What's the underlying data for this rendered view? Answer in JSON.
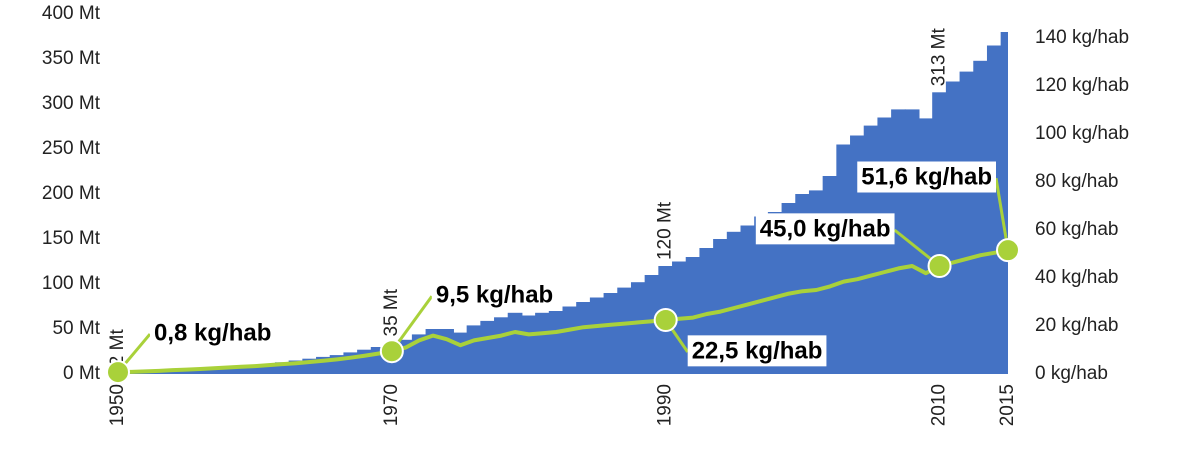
{
  "chart_data": {
    "type": "area-line",
    "x": [
      1950,
      1951,
      1952,
      1953,
      1954,
      1955,
      1956,
      1957,
      1958,
      1959,
      1960,
      1961,
      1962,
      1963,
      1964,
      1965,
      1966,
      1967,
      1968,
      1969,
      1970,
      1971,
      1972,
      1973,
      1974,
      1975,
      1976,
      1977,
      1978,
      1979,
      1980,
      1981,
      1982,
      1983,
      1984,
      1985,
      1986,
      1987,
      1988,
      1989,
      1990,
      1991,
      1992,
      1993,
      1994,
      1995,
      1996,
      1997,
      1998,
      1999,
      2000,
      2001,
      2002,
      2003,
      2004,
      2005,
      2006,
      2007,
      2008,
      2009,
      2010,
      2011,
      2012,
      2013,
      2014,
      2015
    ],
    "xlim": [
      1950,
      2015
    ],
    "xticks": [
      1950,
      1970,
      1990,
      2010,
      2015
    ],
    "ylim": [
      0,
      400
    ],
    "yticks": [
      {
        "value": 0,
        "label": "0 Mt"
      },
      {
        "value": 50,
        "label": "50 Mt"
      },
      {
        "value": 100,
        "label": "100 Mt"
      },
      {
        "value": 150,
        "label": "150 Mt"
      },
      {
        "value": 200,
        "label": "200 Mt"
      },
      {
        "value": 250,
        "label": "250 Mt"
      },
      {
        "value": 300,
        "label": "300 Mt"
      },
      {
        "value": 350,
        "label": "350 Mt"
      },
      {
        "value": 400,
        "label": "400 Mt"
      }
    ],
    "y2lim": [
      0,
      150
    ],
    "y2ticks": [
      {
        "value": 0,
        "label": "0 kg/hab"
      },
      {
        "value": 20,
        "label": "20 kg/hab"
      },
      {
        "value": 40,
        "label": "40 kg/hab"
      },
      {
        "value": 60,
        "label": "60 kg/hab"
      },
      {
        "value": 80,
        "label": "80 kg/hab"
      },
      {
        "value": 100,
        "label": "100 kg/hab"
      },
      {
        "value": 120,
        "label": "120 kg/hab"
      },
      {
        "value": 140,
        "label": "140 kg/hab"
      }
    ],
    "series": [
      {
        "type": "area",
        "color": "#4472c4",
        "values": [
          2,
          2,
          3,
          4,
          5,
          5,
          6,
          7,
          8,
          9,
          10,
          11,
          13,
          15,
          17,
          19,
          21,
          24,
          27,
          30,
          35,
          38,
          44,
          50,
          50,
          46,
          54,
          59,
          63,
          68,
          65,
          68,
          70,
          75,
          80,
          85,
          90,
          96,
          102,
          110,
          120,
          125,
          130,
          140,
          150,
          158,
          165,
          175,
          180,
          190,
          200,
          204,
          220,
          255,
          265,
          276,
          285,
          294,
          294,
          284,
          313,
          325,
          336,
          348,
          365,
          380
        ],
        "value_labels": [
          "2 Mt",
          null,
          null,
          null,
          null,
          null,
          null,
          null,
          null,
          null,
          null,
          null,
          null,
          null,
          null,
          null,
          null,
          null,
          null,
          null,
          "35 Mt",
          null,
          null,
          null,
          null,
          null,
          null,
          null,
          null,
          null,
          null,
          null,
          null,
          null,
          null,
          null,
          null,
          null,
          null,
          null,
          "120 Mt",
          null,
          null,
          null,
          null,
          null,
          null,
          null,
          null,
          null,
          null,
          null,
          null,
          null,
          null,
          null,
          null,
          null,
          null,
          null,
          "313 Mt",
          null,
          null,
          null,
          null,
          null
        ]
      },
      {
        "type": "line",
        "axis": "y2",
        "color": "#a9d13a",
        "values": [
          0.8,
          0.9,
          1.1,
          1.3,
          1.6,
          1.8,
          2.1,
          2.4,
          2.7,
          3.0,
          3.3,
          3.7,
          4.1,
          4.5,
          5.0,
          5.5,
          6.1,
          6.8,
          7.6,
          8.5,
          9.5,
          11,
          14,
          16,
          14.5,
          12,
          14,
          15,
          16,
          17.5,
          16.5,
          17,
          17.5,
          18.5,
          19.5,
          20,
          20.5,
          21,
          21.5,
          22,
          22.5,
          23,
          23.5,
          25,
          26,
          27.5,
          29,
          30.5,
          32,
          33.5,
          34.5,
          35,
          36.5,
          38.5,
          39.5,
          41,
          42.5,
          44,
          45,
          42,
          45.0,
          46.5,
          48,
          49.5,
          50.5,
          51.6
        ],
        "value_labels": [
          "0,8 kg/hab",
          null,
          null,
          null,
          null,
          null,
          null,
          null,
          null,
          null,
          null,
          null,
          null,
          null,
          null,
          null,
          null,
          null,
          null,
          null,
          "9,5 kg/hab",
          null,
          null,
          null,
          null,
          null,
          null,
          null,
          null,
          null,
          null,
          null,
          null,
          null,
          null,
          null,
          null,
          null,
          null,
          null,
          "22,5 kg/hab",
          null,
          null,
          null,
          null,
          null,
          null,
          null,
          null,
          null,
          null,
          null,
          null,
          null,
          null,
          null,
          null,
          null,
          null,
          null,
          "45,0 kg/hab",
          null,
          null,
          null,
          null,
          "51,6 kg/hab"
        ]
      }
    ]
  }
}
